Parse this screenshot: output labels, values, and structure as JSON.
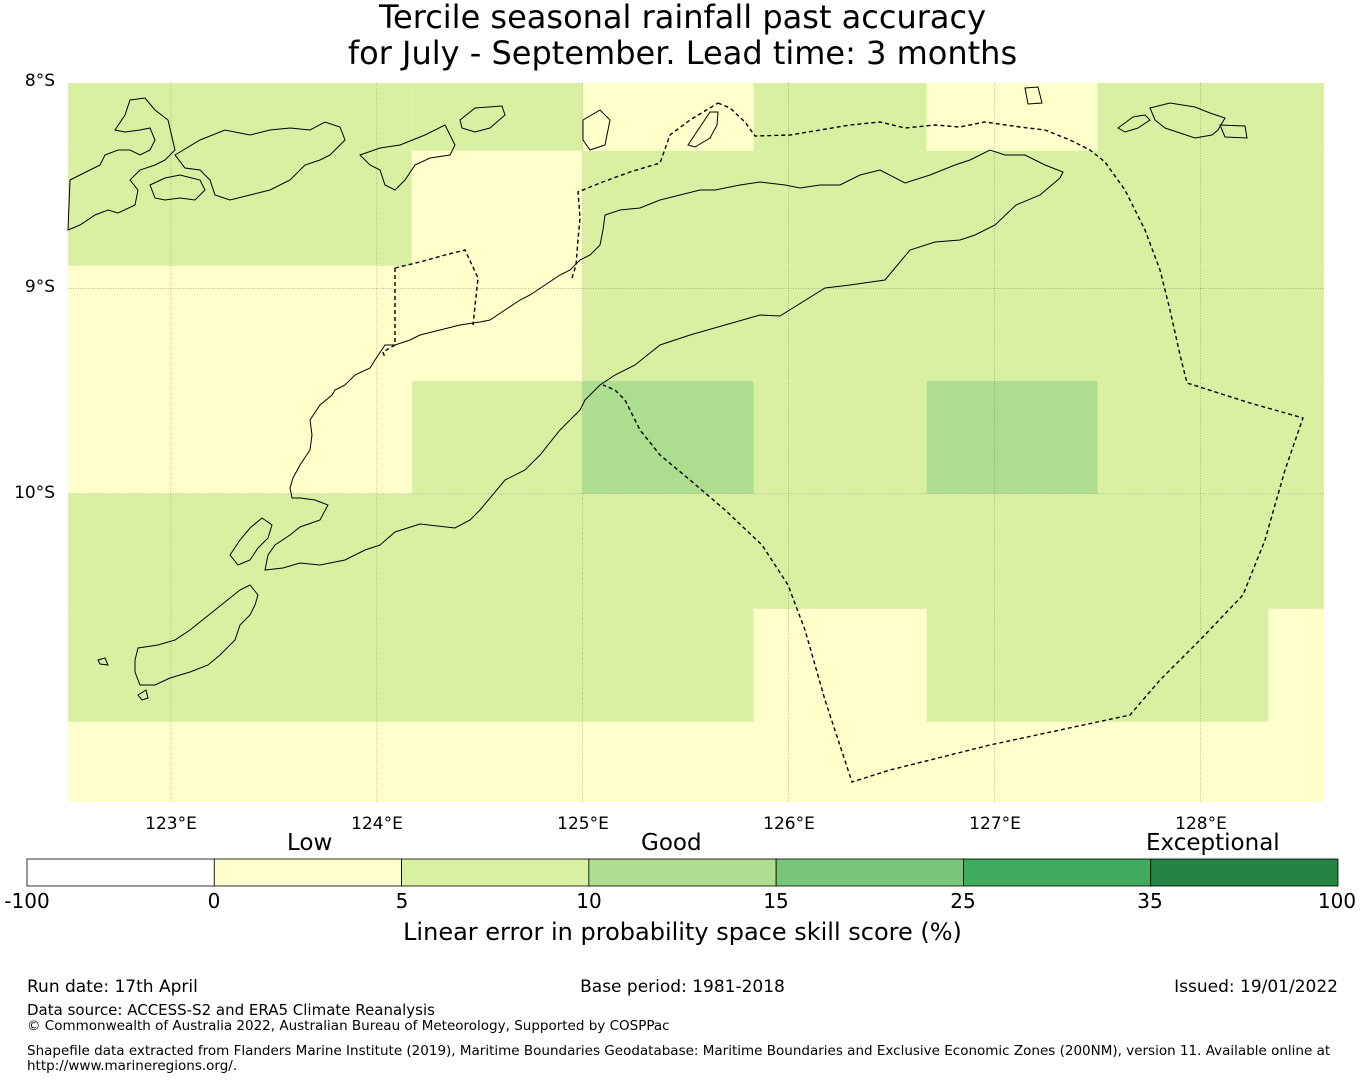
{
  "title": {
    "line1": "Tercile seasonal rainfall past accuracy",
    "line2": "for July - September. Lead time: 3 months"
  },
  "map": {
    "lat_labels": [
      "8°S",
      "9°S",
      "10°S"
    ],
    "lon_labels": [
      "123°E",
      "124°E",
      "125°E",
      "126°E",
      "127°E",
      "128°E"
    ],
    "extent": {
      "lon_min": 122.5,
      "lon_max": 128.6,
      "lat_min": -11.5,
      "lat_max": -8.0
    },
    "grid_cells": [
      {
        "lon": [
          122.5,
          124.17
        ],
        "lat": [
          -8.33,
          -8.0
        ],
        "category": "5-10"
      },
      {
        "lon": [
          124.17,
          125.0
        ],
        "lat": [
          -8.33,
          -8.0
        ],
        "category": "5-10"
      },
      {
        "lon": [
          125.0,
          125.83
        ],
        "lat": [
          -8.33,
          -8.0
        ],
        "category": "0-5"
      },
      {
        "lon": [
          125.83,
          126.67
        ],
        "lat": [
          -8.33,
          -8.0
        ],
        "category": "5-10"
      },
      {
        "lon": [
          126.67,
          127.5
        ],
        "lat": [
          -8.33,
          -8.0
        ],
        "category": "0-5"
      },
      {
        "lon": [
          127.5,
          128.6
        ],
        "lat": [
          -8.33,
          -8.0
        ],
        "category": "5-10"
      },
      {
        "lon": [
          122.5,
          124.17
        ],
        "lat": [
          -8.89,
          -8.33
        ],
        "category": "5-10"
      },
      {
        "lon": [
          124.17,
          125.0
        ],
        "lat": [
          -8.89,
          -8.33
        ],
        "category": "0-5"
      },
      {
        "lon": [
          125.0,
          128.6
        ],
        "lat": [
          -8.89,
          -8.33
        ],
        "category": "5-10"
      },
      {
        "lon": [
          122.5,
          125.0
        ],
        "lat": [
          -9.45,
          -8.89
        ],
        "category": "0-5"
      },
      {
        "lon": [
          125.0,
          128.6
        ],
        "lat": [
          -9.45,
          -8.89
        ],
        "category": "5-10"
      },
      {
        "lon": [
          122.5,
          124.17
        ],
        "lat": [
          -10.0,
          -9.45
        ],
        "category": "0-5"
      },
      {
        "lon": [
          124.17,
          125.0
        ],
        "lat": [
          -10.0,
          -9.45
        ],
        "category": "5-10"
      },
      {
        "lon": [
          125.0,
          125.83
        ],
        "lat": [
          -10.0,
          -9.45
        ],
        "category": "10-15"
      },
      {
        "lon": [
          125.83,
          126.67
        ],
        "lat": [
          -10.0,
          -9.45
        ],
        "category": "5-10"
      },
      {
        "lon": [
          126.67,
          127.5
        ],
        "lat": [
          -10.0,
          -9.45
        ],
        "category": "10-15"
      },
      {
        "lon": [
          127.5,
          128.6
        ],
        "lat": [
          -10.0,
          -9.45
        ],
        "category": "5-10"
      },
      {
        "lon": [
          122.5,
          128.6
        ],
        "lat": [
          -10.56,
          -10.0
        ],
        "category": "5-10"
      },
      {
        "lon": [
          122.5,
          125.83
        ],
        "lat": [
          -11.11,
          -10.56
        ],
        "category": "5-10"
      },
      {
        "lon": [
          125.83,
          126.67
        ],
        "lat": [
          -11.11,
          -10.56
        ],
        "category": "0-5"
      },
      {
        "lon": [
          126.67,
          128.33
        ],
        "lat": [
          -11.11,
          -10.56
        ],
        "category": "5-10"
      },
      {
        "lon": [
          128.33,
          128.6
        ],
        "lat": [
          -11.11,
          -10.56
        ],
        "category": "0-5"
      },
      {
        "lon": [
          122.5,
          128.6
        ],
        "lat": [
          -11.5,
          -11.11
        ],
        "category": "0-5"
      }
    ]
  },
  "colorbar": {
    "category_labels": [
      "Low",
      "Good",
      "Exceptional"
    ],
    "ticks": [
      "-100",
      "0",
      "5",
      "10",
      "15",
      "25",
      "35",
      "100"
    ],
    "segments": [
      {
        "from": "-100",
        "to": "0",
        "color": "#ffffff"
      },
      {
        "from": "0",
        "to": "5",
        "color": "#ffffcc"
      },
      {
        "from": "5",
        "to": "10",
        "color": "#d9f0a3"
      },
      {
        "from": "10",
        "to": "15",
        "color": "#addd8e"
      },
      {
        "from": "15",
        "to": "25",
        "color": "#78c679"
      },
      {
        "from": "25",
        "to": "35",
        "color": "#41ab5d"
      },
      {
        "from": "35",
        "to": "100",
        "color": "#238443"
      }
    ],
    "label": "Linear error in probability space skill score (%)"
  },
  "footer": {
    "run_date": "Run date: 17th April",
    "base_period": "Base period: 1981-2018",
    "issued": "Issued: 19/01/2022",
    "data_source": "Data source: ACCESS-S2 and ERA5 Climate Reanalysis",
    "copyright": "© Commonwealth of Australia 2022, Australian Bureau of Meteorology, Supported by COSPPac",
    "shapefile_line1": "Shapefile data extracted from Flanders Marine Institute (2019), Maritime Boundaries Geodatabase: Maritime Boundaries and Exclusive Economic Zones (200NM), version 11. Available online at",
    "shapefile_line2": "http://www.marineregions.org/."
  }
}
